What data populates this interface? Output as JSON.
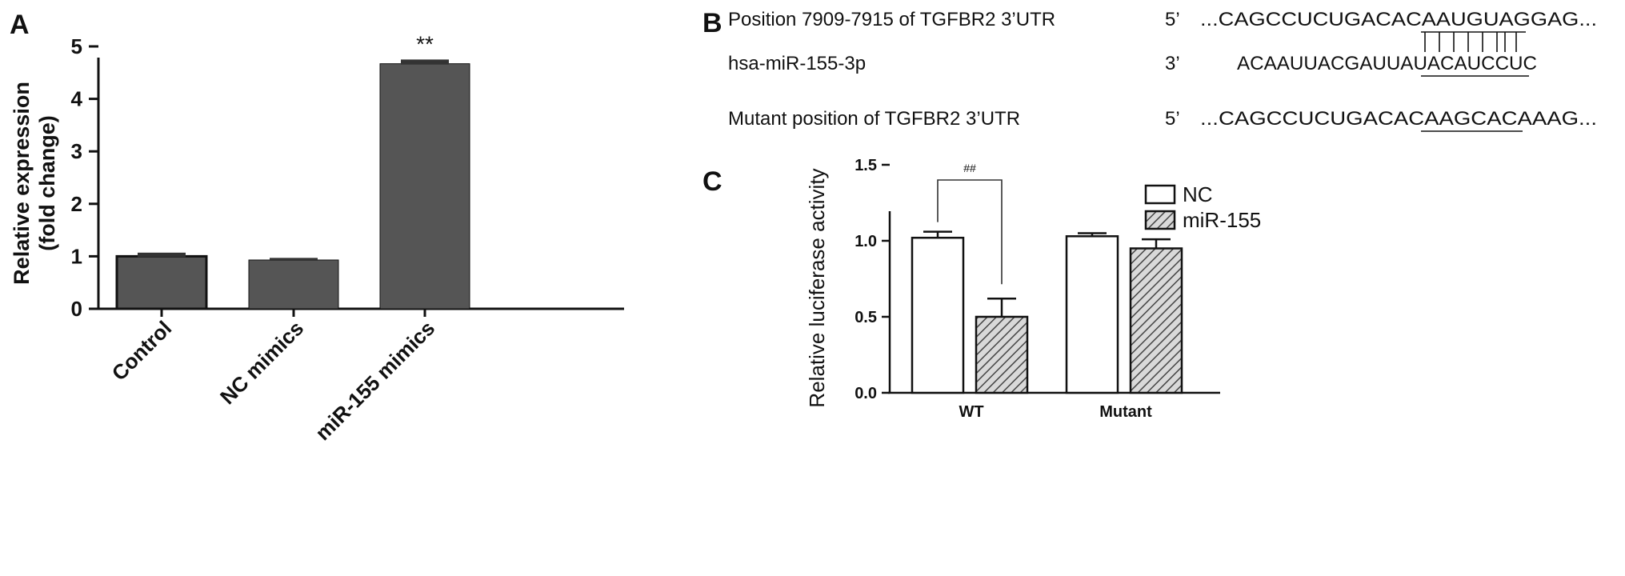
{
  "chart_data": [
    {
      "panel": "A",
      "type": "bar",
      "ylabel_lines": [
        "Relative expression",
        "(fold change)"
      ],
      "ylim": [
        0,
        5
      ],
      "yticks": [
        "0",
        "1",
        "2",
        "3",
        "4",
        "5"
      ],
      "categories": [
        "Control",
        "NC mimics",
        "miR-155 mimics"
      ],
      "values": [
        1.0,
        0.93,
        4.67
      ],
      "errors": [
        0.07,
        0.04,
        0.08
      ],
      "annotations": [
        {
          "category": "miR-155 mimics",
          "text": "**"
        }
      ],
      "colors": {
        "bar": "#555555",
        "bar_edge": "#111111"
      }
    },
    {
      "panel": "C",
      "type": "bar",
      "ylabel": "Relative luciferase activity",
      "ylim": [
        0,
        1.5
      ],
      "yticks": [
        "0.0",
        "0.5",
        "1.0",
        "1.5"
      ],
      "categories": [
        "WT",
        "Mutant"
      ],
      "series": [
        {
          "name": "NC",
          "values": [
            1.02,
            1.03
          ],
          "errors": [
            0.04,
            0.02
          ],
          "fill": "white"
        },
        {
          "name": "miR-155",
          "values": [
            0.5,
            0.95
          ],
          "errors": [
            0.12,
            0.06
          ],
          "fill": "hatched"
        }
      ],
      "legend": {
        "position": "top-right",
        "items": [
          "NC",
          "miR-155"
        ]
      },
      "annotations": [
        {
          "bracket": "WT",
          "text": "##"
        }
      ]
    }
  ],
  "panelB": {
    "letter": "B",
    "rows": [
      {
        "label": "Position 7909-7915 of TGFBR2 3’UTR",
        "end": "5’",
        "seq": "...CAGCCUCUGACACAAUGUAGGAG..."
      },
      {
        "label": "hsa-miR-155-3p",
        "end": "3’",
        "seq": "ACAAUUACGAUUAUACAUCCUC"
      },
      {
        "label": "Mutant position of TGFBR2 3’UTR",
        "end": "5’",
        "seq": "...CAGCCUCUGACACAAGCACAAAG..."
      }
    ]
  },
  "panelA_letter": "A",
  "panelC_letter": "C"
}
